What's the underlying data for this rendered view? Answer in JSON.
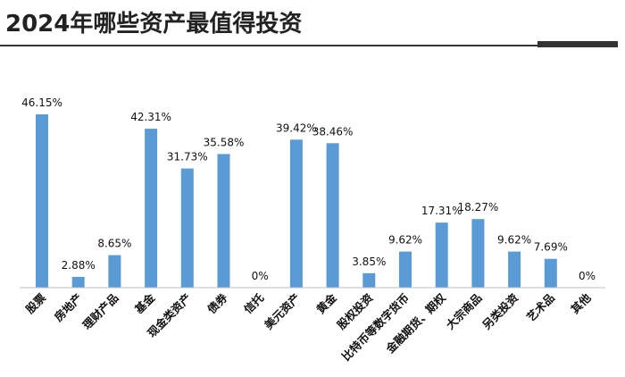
{
  "chart_data": {
    "type": "bar",
    "title": "2024年哪些资产最值得投资",
    "categories": [
      "股票",
      "房地产",
      "理财产品",
      "基金",
      "现金类资产",
      "债券",
      "信托",
      "美元资产",
      "黄金",
      "股权投资",
      "比特币等数字货币",
      "金融期货、期权",
      "大宗商品",
      "另类投资",
      "艺术品",
      "其他"
    ],
    "values": [
      46.15,
      2.88,
      8.65,
      42.31,
      31.73,
      35.58,
      0,
      39.42,
      38.46,
      3.85,
      9.62,
      17.31,
      18.27,
      9.62,
      7.69,
      0
    ],
    "value_labels": [
      "46.15%",
      "2.88%",
      "8.65%",
      "42.31%",
      "31.73%",
      "35.58%",
      "0%",
      "39.42%",
      "38.46%",
      "3.85%",
      "9.62%",
      "17.31%",
      "18.27%",
      "9.62%",
      "7.69%",
      "0%"
    ],
    "ylim": [
      0,
      50
    ],
    "grid": false,
    "bar_color": "#5b9bd5",
    "axis_color": "#bfbfbf"
  }
}
